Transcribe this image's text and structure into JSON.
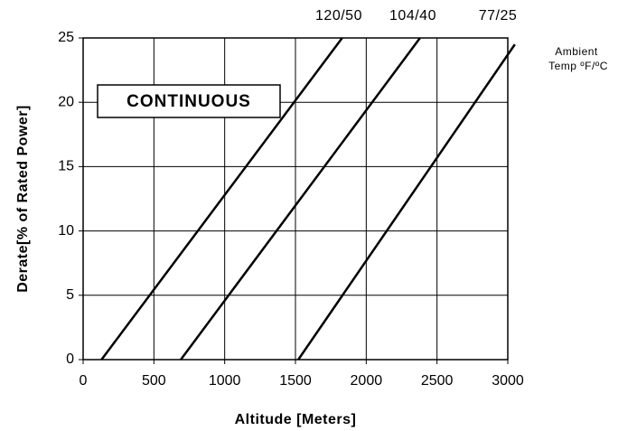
{
  "chart_data": {
    "type": "line",
    "xlabel": "Altitude [Meters]",
    "ylabel": "Derate[% of Rated Power]",
    "annotations": [
      "CONTINUOUS",
      "Ambient",
      "Temp ºF/ºC"
    ],
    "xlim": [
      0,
      3000
    ],
    "xticks": [
      0,
      500,
      1000,
      1500,
      2000,
      2500,
      3000
    ],
    "ylim": [
      0,
      25
    ],
    "yticks": [
      0,
      5,
      10,
      15,
      20,
      25
    ],
    "grid": true,
    "series": [
      {
        "name": "120/50",
        "color": "#000000",
        "x": [
          130,
          1830
        ],
        "values": [
          0,
          25
        ]
      },
      {
        "name": "104/40",
        "color": "#000000",
        "x": [
          690,
          2380
        ],
        "values": [
          0,
          25
        ]
      },
      {
        "name": "77/25",
        "color": "#000000",
        "x": [
          1520,
          3050
        ],
        "values": [
          0,
          24.5
        ]
      }
    ]
  }
}
